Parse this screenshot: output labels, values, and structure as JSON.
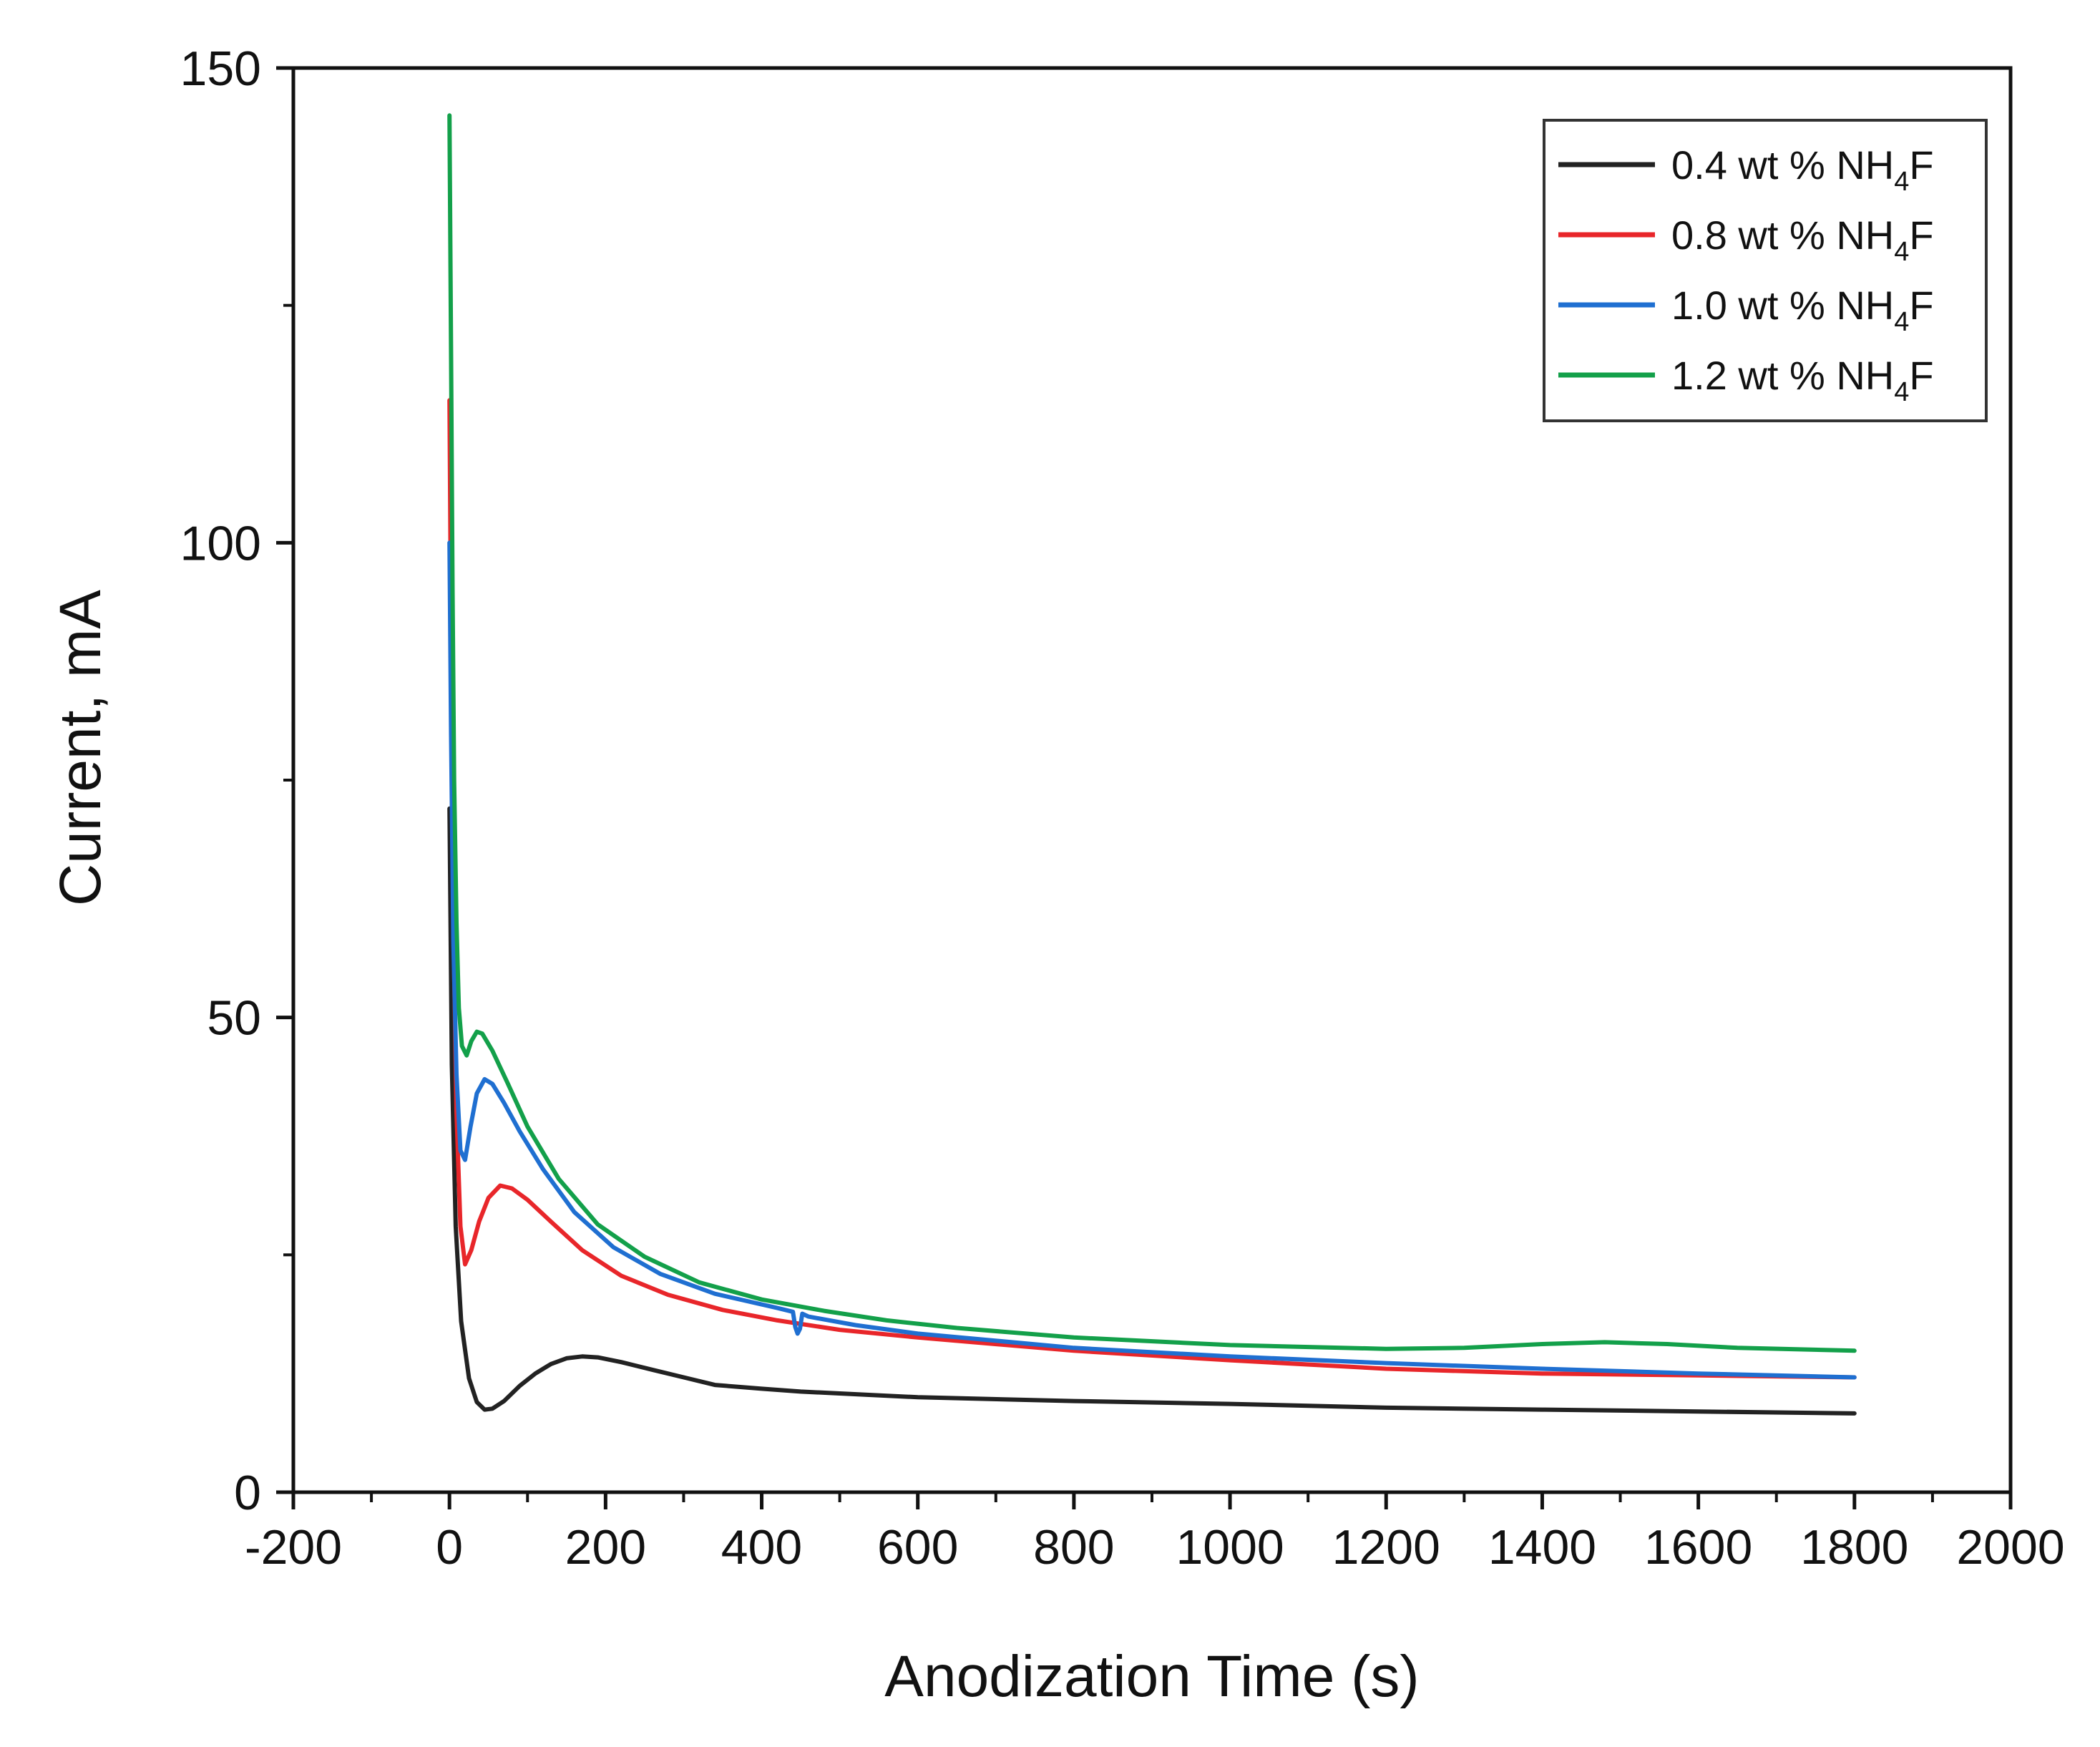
{
  "chart_data": {
    "type": "line",
    "title": "",
    "xlabel": "Anodization Time (s)",
    "ylabel": "Current, mA",
    "xlim": [
      -200,
      2000
    ],
    "ylim": [
      0,
      150
    ],
    "x_ticks": [
      -200,
      0,
      200,
      400,
      600,
      800,
      1000,
      1200,
      1400,
      1600,
      1800,
      2000
    ],
    "y_ticks": [
      0,
      50,
      100,
      150
    ],
    "grid": false,
    "legend_position": "top-right",
    "series": [
      {
        "name": "0.4 wt % NH4F",
        "label_main": "0.4 wt % NH",
        "label_sub": "4",
        "label_tail": "F",
        "color": "#222222",
        "points": [
          [
            0,
            72
          ],
          [
            3,
            45
          ],
          [
            8,
            28
          ],
          [
            15,
            18
          ],
          [
            25,
            12
          ],
          [
            35,
            9.5
          ],
          [
            45,
            8.7
          ],
          [
            55,
            8.8
          ],
          [
            70,
            9.6
          ],
          [
            90,
            11.2
          ],
          [
            110,
            12.5
          ],
          [
            130,
            13.5
          ],
          [
            150,
            14.1
          ],
          [
            170,
            14.3
          ],
          [
            190,
            14.2
          ],
          [
            220,
            13.7
          ],
          [
            260,
            12.9
          ],
          [
            300,
            12.1
          ],
          [
            340,
            11.3
          ],
          [
            400,
            10.9
          ],
          [
            450,
            10.6
          ],
          [
            500,
            10.4
          ],
          [
            600,
            10.0
          ],
          [
            800,
            9.6
          ],
          [
            1000,
            9.3
          ],
          [
            1200,
            8.9
          ],
          [
            1400,
            8.7
          ],
          [
            1600,
            8.5
          ],
          [
            1800,
            8.3
          ]
        ]
      },
      {
        "name": "0.8 wt % NH4F",
        "label_main": "0.8 wt % NH",
        "label_sub": "4",
        "label_tail": "F",
        "color": "#e8262a",
        "points": [
          [
            0,
            115
          ],
          [
            2,
            90
          ],
          [
            5,
            60
          ],
          [
            9,
            40
          ],
          [
            14,
            28
          ],
          [
            20,
            24
          ],
          [
            28,
            25.5
          ],
          [
            38,
            28.5
          ],
          [
            50,
            31
          ],
          [
            65,
            32.3
          ],
          [
            80,
            32
          ],
          [
            100,
            30.8
          ],
          [
            130,
            28.5
          ],
          [
            170,
            25.5
          ],
          [
            220,
            22.8
          ],
          [
            280,
            20.8
          ],
          [
            350,
            19.2
          ],
          [
            420,
            18.1
          ],
          [
            500,
            17.1
          ],
          [
            600,
            16.3
          ],
          [
            800,
            14.9
          ],
          [
            1000,
            13.9
          ],
          [
            1200,
            13.0
          ],
          [
            1400,
            12.5
          ],
          [
            1600,
            12.3
          ],
          [
            1800,
            12.1
          ]
        ]
      },
      {
        "name": "1.0 wt % NH4F",
        "label_main": "1.0 wt % NH",
        "label_sub": "4",
        "label_tail": "F",
        "color": "#1f6fd1",
        "points": [
          [
            0,
            100
          ],
          [
            2,
            80
          ],
          [
            5,
            58
          ],
          [
            9,
            44
          ],
          [
            14,
            36
          ],
          [
            20,
            35
          ],
          [
            27,
            38.5
          ],
          [
            35,
            42
          ],
          [
            45,
            43.5
          ],
          [
            55,
            43
          ],
          [
            70,
            41
          ],
          [
            90,
            38
          ],
          [
            120,
            34
          ],
          [
            160,
            29.5
          ],
          [
            210,
            25.8
          ],
          [
            270,
            23
          ],
          [
            340,
            20.9
          ],
          [
            420,
            19.4
          ],
          [
            440,
            19.0
          ],
          [
            443,
            17.4
          ],
          [
            446,
            16.7
          ],
          [
            449,
            17.2
          ],
          [
            452,
            18.8
          ],
          [
            460,
            18.5
          ],
          [
            520,
            17.6
          ],
          [
            600,
            16.7
          ],
          [
            800,
            15.2
          ],
          [
            1000,
            14.3
          ],
          [
            1200,
            13.6
          ],
          [
            1400,
            13.0
          ],
          [
            1600,
            12.5
          ],
          [
            1800,
            12.1
          ]
        ]
      },
      {
        "name": "1.2 wt % NH4F",
        "label_main": "1.2 wt % NH",
        "label_sub": "4",
        "label_tail": "F",
        "color": "#13a04a",
        "points": [
          [
            0,
            145
          ],
          [
            2,
            120
          ],
          [
            4,
            95
          ],
          [
            6,
            75
          ],
          [
            9,
            60
          ],
          [
            12,
            51
          ],
          [
            16,
            47
          ],
          [
            22,
            46
          ],
          [
            28,
            47.5
          ],
          [
            35,
            48.5
          ],
          [
            42,
            48.3
          ],
          [
            55,
            46.5
          ],
          [
            75,
            43
          ],
          [
            100,
            38.5
          ],
          [
            140,
            33
          ],
          [
            190,
            28.2
          ],
          [
            250,
            24.8
          ],
          [
            320,
            22.1
          ],
          [
            400,
            20.3
          ],
          [
            480,
            19.1
          ],
          [
            560,
            18.1
          ],
          [
            650,
            17.3
          ],
          [
            800,
            16.3
          ],
          [
            1000,
            15.5
          ],
          [
            1200,
            15.1
          ],
          [
            1300,
            15.2
          ],
          [
            1400,
            15.6
          ],
          [
            1480,
            15.8
          ],
          [
            1560,
            15.6
          ],
          [
            1650,
            15.2
          ],
          [
            1800,
            14.9
          ]
        ]
      }
    ]
  }
}
